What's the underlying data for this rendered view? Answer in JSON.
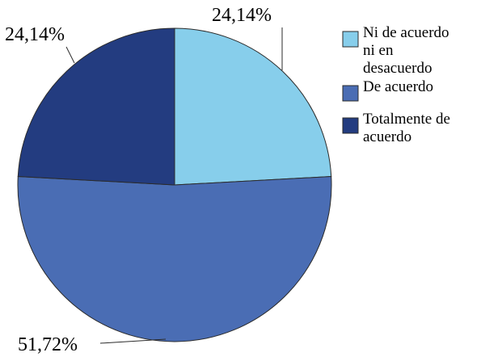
{
  "chart_data": {
    "type": "pie",
    "categories": [
      "Ni de acuerdo ni en desacuerdo",
      "De acuerdo",
      "Totalmente de acuerdo"
    ],
    "values": [
      24.14,
      51.72,
      24.14
    ],
    "data_labels": [
      "24,14%",
      "51,72%",
      "24,14%"
    ],
    "colors": [
      "#87ceeb",
      "#4a6db4",
      "#233c80"
    ],
    "legend": {
      "placement": "top-right",
      "entries": [
        {
          "lines": [
            "Ni de acuerdo",
            "ni en",
            "desacuerdo"
          ]
        },
        {
          "lines": [
            "De acuerdo"
          ]
        },
        {
          "lines": [
            "Totalmente de",
            "acuerdo"
          ]
        }
      ]
    },
    "start_angle": "12 o'clock",
    "direction": "clockwise"
  }
}
